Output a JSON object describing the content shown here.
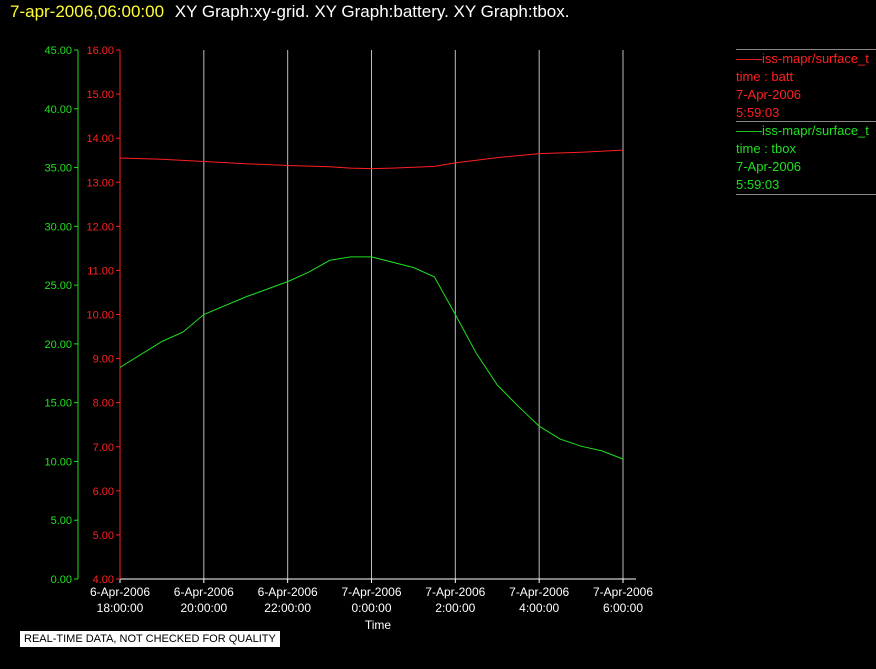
{
  "header": {
    "timestamp": "7-apr-2006,06:00:00",
    "graph_titles": "XY Graph:xy-grid.  XY Graph:battery.  XY Graph:tbox."
  },
  "legend": [
    {
      "name": "iss-mapr/surface_t",
      "lines": [
        "time : batt",
        "7-Apr-2006",
        "5:59:03"
      ],
      "color": "#ff2020"
    },
    {
      "name": "iss-mapr/surface_t",
      "lines": [
        "time : tbox",
        "7-Apr-2006",
        "5:59:03"
      ],
      "color": "#20e020"
    }
  ],
  "notice": "REAL-TIME DATA, NOT CHECKED FOR QUALITY",
  "colors": {
    "background": "#000000",
    "grid": "#bbbbbb",
    "batt": "#ff2020",
    "tbox": "#20e020",
    "header_timestamp": "#ffff33"
  },
  "chart_data": {
    "type": "line",
    "xlabel": "Time",
    "x_ticks": [
      [
        "6-Apr-2006",
        "18:00:00"
      ],
      [
        "6-Apr-2006",
        "20:00:00"
      ],
      [
        "6-Apr-2006",
        "22:00:00"
      ],
      [
        "7-Apr-2006",
        "0:00:00"
      ],
      [
        "7-Apr-2006",
        "2:00:00"
      ],
      [
        "7-Apr-2006",
        "4:00:00"
      ],
      [
        "7-Apr-2006",
        "6:00:00"
      ]
    ],
    "x_unit": "hours",
    "x_range": [
      0,
      12
    ],
    "grid": "vertical",
    "y_axes": [
      {
        "name": "tbox",
        "color": "#20e020",
        "ylim": [
          0,
          45
        ],
        "ticks": [
          "0.00",
          "5.00",
          "10.00",
          "15.00",
          "20.00",
          "25.00",
          "30.00",
          "35.00",
          "40.00",
          "45.00"
        ]
      },
      {
        "name": "batt",
        "color": "#ff2020",
        "ylim": [
          4,
          16
        ],
        "ticks": [
          "4.00",
          "5.00",
          "6.00",
          "7.00",
          "8.00",
          "9.00",
          "10.00",
          "11.00",
          "12.00",
          "13.00",
          "14.00",
          "15.00",
          "16.00"
        ]
      }
    ],
    "series": [
      {
        "name": "iss-mapr/surface_t  time : batt",
        "axis": "batt",
        "color": "#ff2020",
        "x": [
          0,
          1,
          2,
          3,
          4,
          5,
          5.5,
          6,
          6.5,
          7,
          7.5,
          8,
          9,
          10,
          11,
          12
        ],
        "values": [
          13.55,
          13.52,
          13.47,
          13.42,
          13.38,
          13.35,
          13.32,
          13.31,
          13.32,
          13.34,
          13.36,
          13.44,
          13.56,
          13.65,
          13.68,
          13.73
        ]
      },
      {
        "name": "iss-mapr/surface_t  time : tbox",
        "axis": "tbox",
        "color": "#20e020",
        "x": [
          0,
          1,
          1.5,
          2,
          3,
          4,
          4.5,
          5,
          5.5,
          6,
          7,
          7.5,
          8,
          8.5,
          9,
          9.5,
          10,
          10.5,
          11,
          11.5,
          12
        ],
        "values": [
          18.0,
          20.2,
          21.0,
          22.5,
          24.0,
          25.3,
          26.1,
          27.1,
          27.4,
          27.4,
          26.5,
          25.7,
          22.5,
          19.2,
          16.5,
          14.7,
          13.0,
          11.9,
          11.3,
          10.9,
          10.2
        ]
      }
    ]
  }
}
